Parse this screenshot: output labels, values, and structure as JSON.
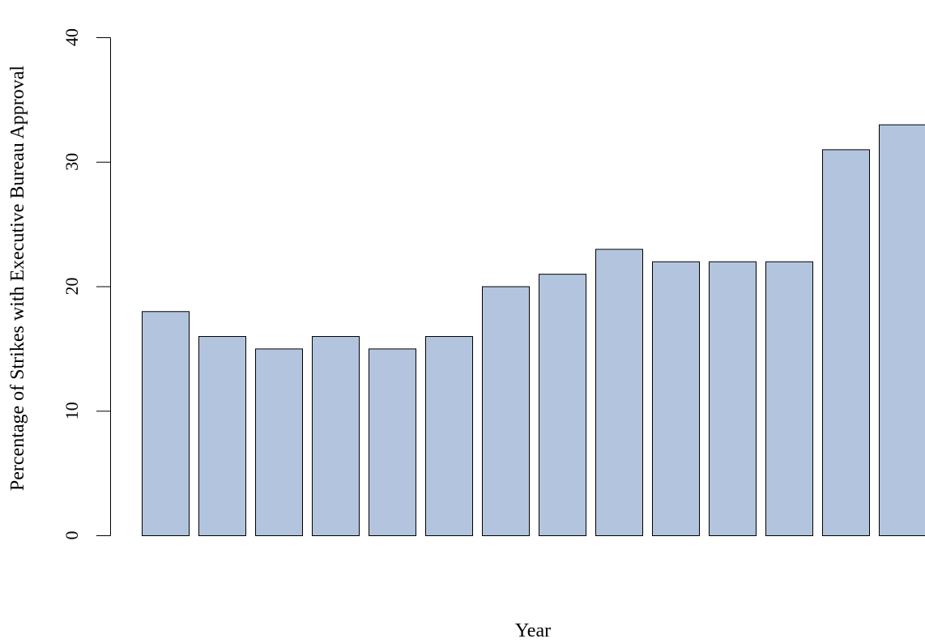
{
  "chart_data": {
    "type": "bar",
    "title": "",
    "xlabel": "Year",
    "ylabel": "Percentage of Strikes with Executive Bureau Approval",
    "ylim": [
      0,
      40
    ],
    "yticks": [
      0,
      10,
      20,
      30,
      40
    ],
    "grid": false,
    "bar_color": "#b3c5de",
    "bar_border_color": "#000000",
    "values": [
      18,
      16,
      15,
      16,
      15,
      16,
      20,
      21,
      23,
      22,
      22,
      22,
      31,
      33
    ]
  }
}
